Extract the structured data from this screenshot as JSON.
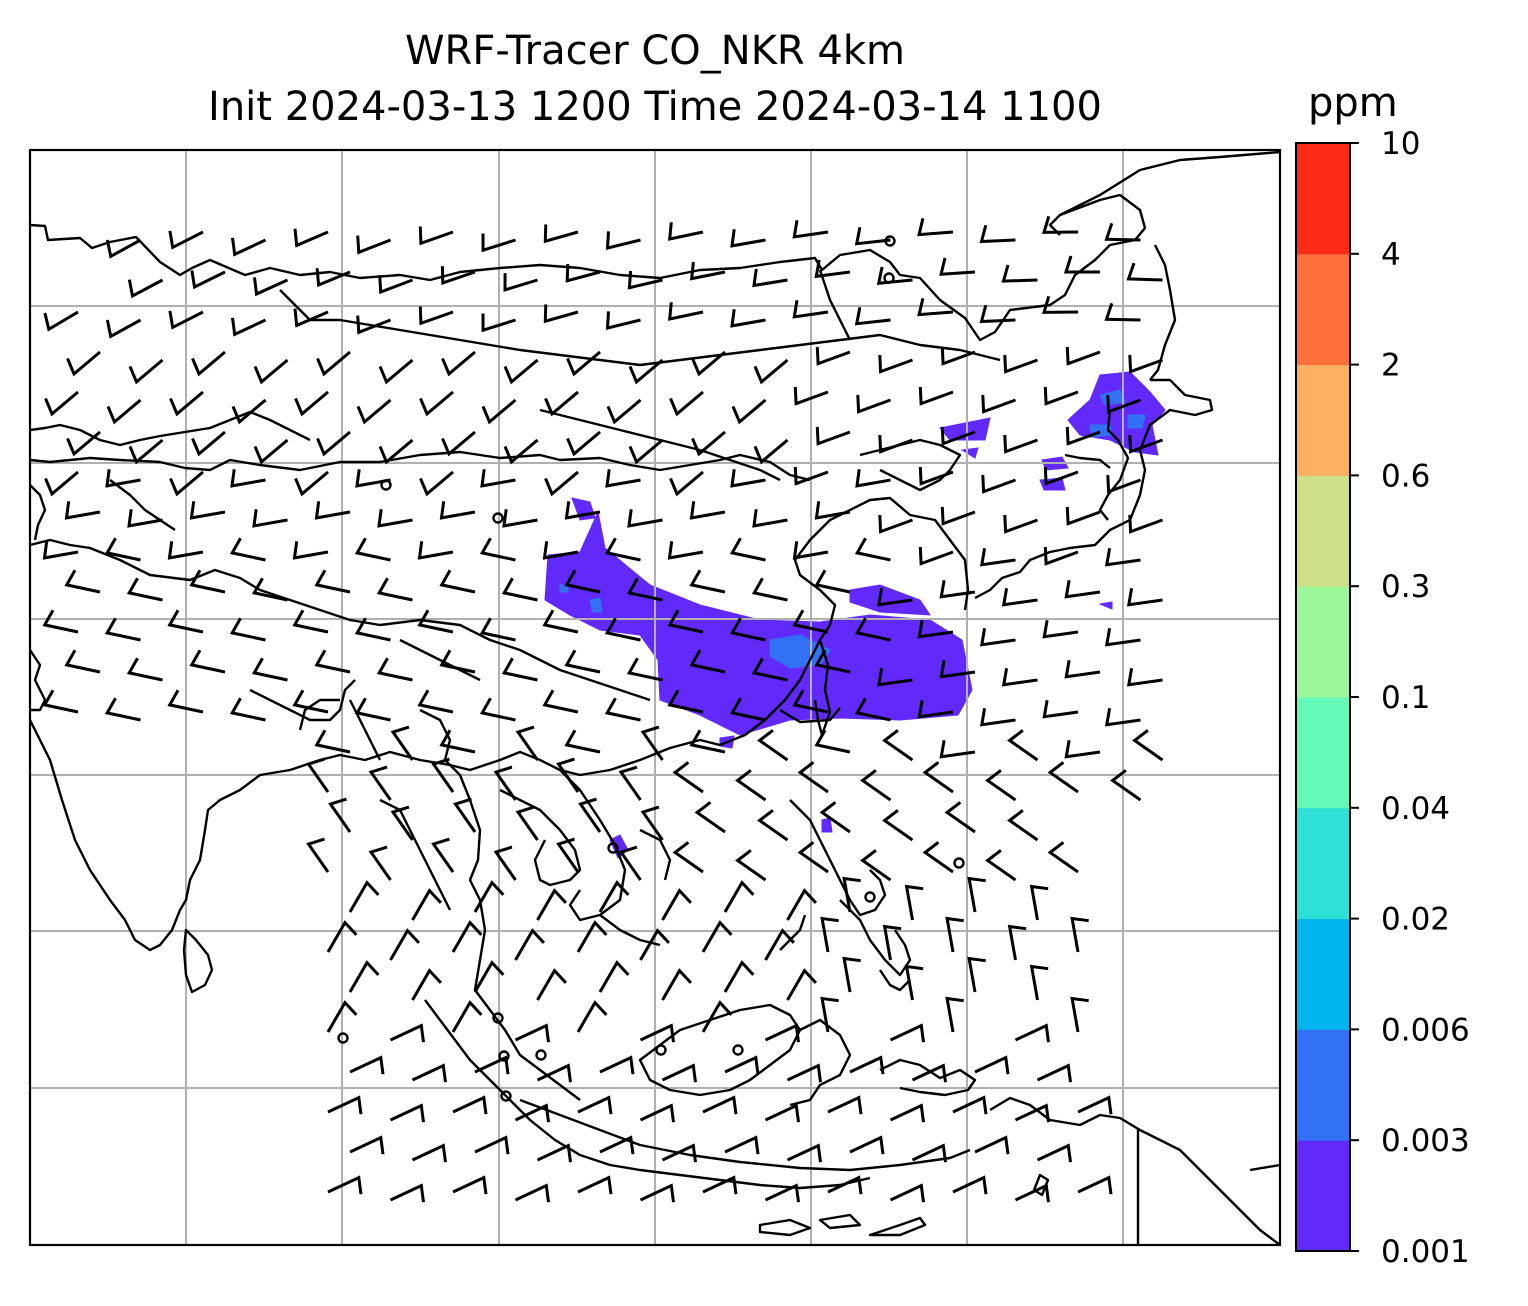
{
  "title": {
    "line1": "WRF-Tracer CO_NKR 4km",
    "line2": "Init 2024-03-13 1200 Time 2024-03-14 1100"
  },
  "colorbar": {
    "unit": "ppm",
    "levels": [
      "0.001",
      "0.003",
      "0.006",
      "0.02",
      "0.04",
      "0.1",
      "0.3",
      "0.6",
      "2",
      "4",
      "10"
    ],
    "colors": [
      "#6229fb",
      "#3271f4",
      "#00b4ee",
      "#2ee0d5",
      "#66fab9",
      "#9cf69a",
      "#cde087",
      "#fbb062",
      "#fd6f3b",
      "#fb2b17"
    ]
  },
  "map": {
    "plume_color": "#6229fb",
    "plume_highlight": "#3271f4",
    "coastline_color": "#000000",
    "gridline_color": "#b0b0b0",
    "barb_color": "#000000",
    "gridlines": true
  }
}
